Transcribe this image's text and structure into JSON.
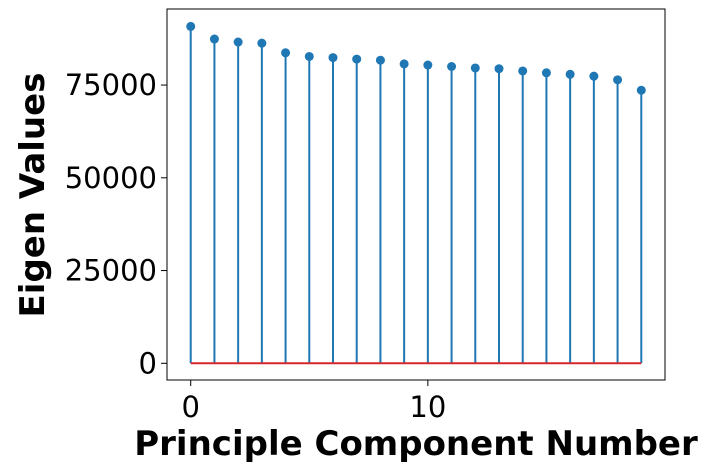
{
  "chart_data": {
    "type": "stem",
    "xlabel": "Principle Component Number",
    "ylabel": "Eigen Values",
    "x": [
      0,
      1,
      2,
      3,
      4,
      5,
      6,
      7,
      8,
      9,
      10,
      11,
      12,
      13,
      14,
      15,
      16,
      17,
      18,
      19
    ],
    "values": [
      90800,
      87400,
      86600,
      86300,
      83700,
      82700,
      82400,
      82000,
      81700,
      80700,
      80400,
      80000,
      79600,
      79400,
      78800,
      78300,
      77900,
      77400,
      76400,
      73600
    ],
    "xlim": [
      -1,
      20
    ],
    "ylim": [
      -4500,
      95500
    ],
    "xticks": [
      0,
      10
    ],
    "yticks": [
      0,
      25000,
      50000,
      75000
    ],
    "stem_color": "#1f77b4",
    "marker_color": "#1f77b4",
    "baseline_color": "#d62728",
    "grid": false
  }
}
